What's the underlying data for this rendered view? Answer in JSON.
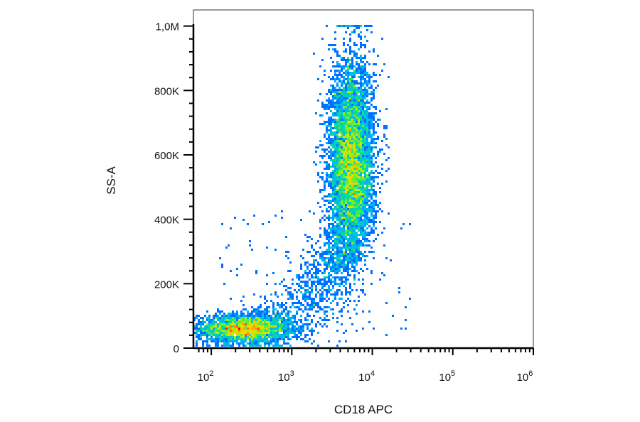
{
  "chart_data": {
    "type": "scatter",
    "subtype": "flow-cytometry density dot plot",
    "title": "",
    "xlabel": "CD18 APC",
    "ylabel": "SS-A",
    "x_scale": "log",
    "xlim": [
      60,
      1000000
    ],
    "ylim": [
      0,
      1050000
    ],
    "x_ticks": [
      {
        "value": 100,
        "base": "10",
        "exp": "2"
      },
      {
        "value": 1000,
        "base": "10",
        "exp": "3"
      },
      {
        "value": 10000,
        "base": "10",
        "exp": "4"
      },
      {
        "value": 100000,
        "base": "10",
        "exp": "5"
      },
      {
        "value": 1000000,
        "base": "10",
        "exp": "6"
      }
    ],
    "y_ticks": [
      {
        "value": 0,
        "label": "0"
      },
      {
        "value": 200000,
        "label": "200K"
      },
      {
        "value": 400000,
        "label": "400K"
      },
      {
        "value": 600000,
        "label": "600K"
      },
      {
        "value": 800000,
        "label": "800K"
      },
      {
        "value": 1000000,
        "label": "1,0M"
      }
    ],
    "populations": [
      {
        "center_x": 250,
        "center_y": 60000,
        "x_log_spread": 0.28,
        "y_spread": 22000,
        "events": 2600
      },
      {
        "center_x": 5500,
        "center_y": 570000,
        "x_log_spread": 0.14,
        "y_spread": 160000,
        "events": 6500
      },
      {
        "center_x": 2500,
        "center_y": 200000,
        "x_log_spread": 0.35,
        "y_spread": 90000,
        "events": 900
      }
    ],
    "color_scale": [
      "#0000c8",
      "#0050ff",
      "#00b4ff",
      "#00e08c",
      "#b4f000",
      "#ffd200",
      "#ff6400",
      "#e60000"
    ],
    "grid": false,
    "legend": "none"
  }
}
